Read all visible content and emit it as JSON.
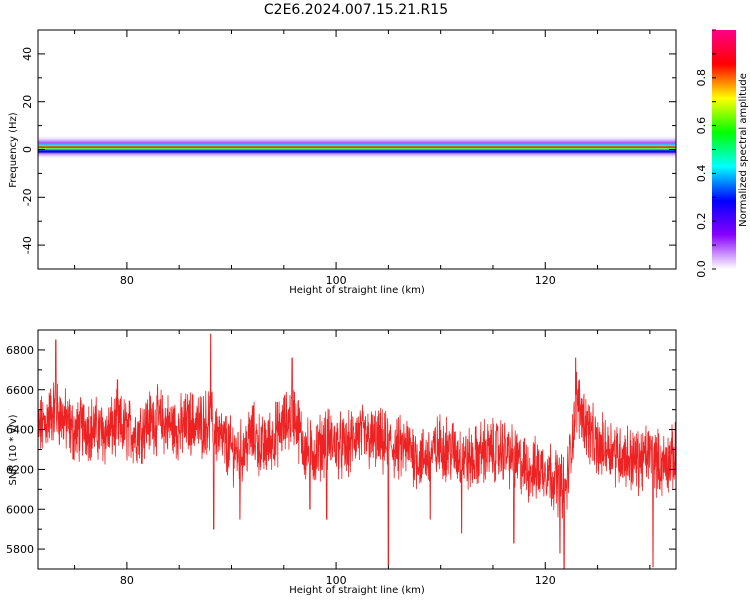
{
  "figure_title": "C2E6.2024.007.15.21.R15",
  "chart_data": [
    {
      "type": "heatmap",
      "title": "",
      "xlabel": "Height of straight line (km)",
      "ylabel": "Frequency (Hz)",
      "xlim": [
        71.5,
        132.5
      ],
      "ylim": [
        -50,
        50
      ],
      "xticks": [
        80,
        100,
        120
      ],
      "yticks": [
        40,
        20,
        0,
        -20,
        -40
      ],
      "grid": false,
      "band_center_hz": 1,
      "band_peak_halfwidth_hz": 2,
      "band_halo_halfwidth_hz": 5,
      "colorbar": {
        "label": "Normalized spectral amplitude",
        "range": [
          0,
          1
        ],
        "ticks": [
          0.0,
          0.2,
          0.4,
          0.6,
          0.8
        ],
        "colormap": [
          "#ffffff",
          "#8800ff",
          "#0000ff",
          "#00ffff",
          "#00ff00",
          "#ffff00",
          "#ff0000",
          "#ff0088"
        ]
      }
    },
    {
      "type": "line",
      "title": "",
      "xlabel": "Height of straight line (km)",
      "ylabel": "SNR (10 * v/v)",
      "xlim": [
        71.5,
        132.5
      ],
      "ylim": [
        5700,
        6900
      ],
      "xticks": [
        80,
        100,
        120
      ],
      "yticks": [
        5800,
        6000,
        6200,
        6400,
        6600,
        6800
      ],
      "grid": false,
      "color": "#ee2222",
      "x": [
        71.5,
        72,
        73,
        74,
        75,
        76,
        77,
        78,
        79,
        80,
        81,
        82,
        83,
        84,
        85,
        86,
        87,
        88,
        89,
        90,
        91,
        92,
        93,
        94,
        95,
        96,
        97,
        98,
        99,
        100,
        101,
        102,
        103,
        104,
        105,
        106,
        107,
        108,
        109,
        110,
        111,
        112,
        113,
        114,
        115,
        116,
        117,
        118,
        119,
        120,
        121,
        122,
        123,
        124,
        125,
        126,
        127,
        128,
        129,
        130,
        131,
        132,
        132.5
      ],
      "y": [
        6400,
        6420,
        6500,
        6450,
        6380,
        6420,
        6400,
        6380,
        6420,
        6400,
        6380,
        6440,
        6450,
        6420,
        6400,
        6440,
        6420,
        6450,
        6350,
        6300,
        6280,
        6380,
        6300,
        6360,
        6420,
        6480,
        6300,
        6280,
        6350,
        6330,
        6300,
        6380,
        6350,
        6340,
        6320,
        6300,
        6310,
        6250,
        6270,
        6320,
        6300,
        6260,
        6240,
        6290,
        6290,
        6300,
        6250,
        6210,
        6190,
        6210,
        6150,
        6100,
        6550,
        6420,
        6300,
        6320,
        6280,
        6260,
        6240,
        6280,
        6220,
        6250,
        6260
      ],
      "spikes": [
        [
          73.2,
          6850
        ],
        [
          79.1,
          6650
        ],
        [
          88.0,
          6880
        ],
        [
          88.3,
          5900
        ],
        [
          90.8,
          5950
        ],
        [
          95.8,
          6760
        ],
        [
          97.5,
          6000
        ],
        [
          99.1,
          5950
        ],
        [
          105.0,
          5720
        ],
        [
          109.0,
          5950
        ],
        [
          112.0,
          5880
        ],
        [
          117.0,
          5830
        ],
        [
          121.4,
          5780
        ],
        [
          121.8,
          5700
        ],
        [
          122.9,
          6760
        ],
        [
          130.3,
          5710
        ]
      ]
    }
  ]
}
